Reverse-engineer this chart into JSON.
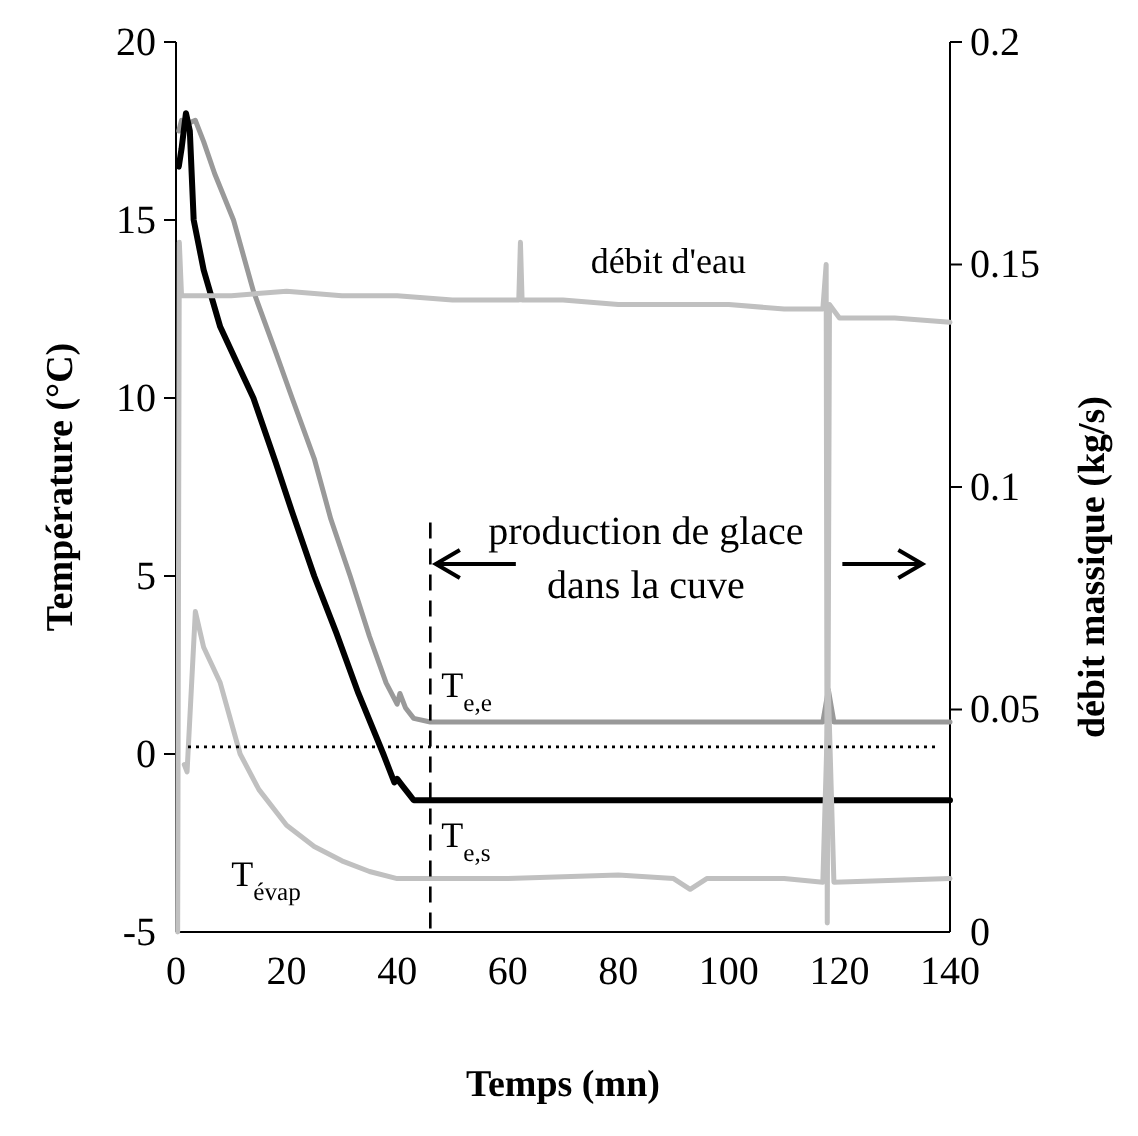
{
  "chart_data": {
    "type": "line",
    "xlabel": "Temps (mn)",
    "ylabel": "Température (°C)",
    "y2label": "débit massique (kg/s)",
    "xlim": [
      0,
      140
    ],
    "xticks": [
      0,
      20,
      40,
      60,
      80,
      100,
      120,
      140
    ],
    "ylim": [
      -5,
      20
    ],
    "yticks": [
      -5,
      0,
      5,
      10,
      15,
      20
    ],
    "y2lim": [
      0,
      0.2
    ],
    "y2ticks": [
      0,
      0.05,
      0.1,
      0.15,
      0.2
    ],
    "legend": false,
    "grid": false,
    "ref_lines": [
      {
        "axis": "y",
        "value": 0.2,
        "line_style": "dotted",
        "color": "#000000"
      },
      {
        "axis": "x",
        "value": 46,
        "line_style": "dashed",
        "color": "#000000"
      }
    ],
    "annotations": [
      "production de glace dans la cuve"
    ],
    "series": [
      {
        "name": "T$_{e,e}$",
        "color": "#999999",
        "x": [
          0.5,
          1,
          2,
          3.5,
          5,
          7,
          10.4,
          14,
          18,
          21,
          25,
          28,
          31.5,
          35,
          38,
          40,
          40.5,
          41.5,
          43,
          46,
          60,
          80,
          100,
          117,
          118,
          119,
          140
        ],
        "values": [
          17.5,
          17.8,
          17.7,
          17.8,
          17.2,
          16.3,
          15,
          13,
          11.3,
          10,
          8.3,
          6.6,
          5,
          3.3,
          2,
          1.4,
          1.7,
          1.3,
          1,
          0.9,
          0.9,
          0.9,
          0.9,
          0.9,
          1.8,
          0.9,
          0.9
        ]
      },
      {
        "name": "T$_{e,s}$",
        "color": "#000000",
        "x": [
          0.5,
          1,
          1.8,
          2.5,
          3.2,
          5,
          8,
          11,
          14,
          18,
          21,
          25,
          29,
          33,
          37.5,
          39.5,
          40,
          41,
          42,
          43,
          46,
          60,
          80,
          100,
          117,
          118,
          119,
          140
        ],
        "values": [
          16.5,
          17,
          18,
          17.5,
          15,
          13.6,
          12,
          11,
          10,
          8.2,
          6.8,
          5,
          3.4,
          1.7,
          0,
          -0.8,
          -0.7,
          -0.9,
          -1.1,
          -1.3,
          -1.3,
          -1.3,
          -1.3,
          -1.3,
          -1.3,
          -1.3,
          -1.3,
          -1.3
        ]
      },
      {
        "name": "T$_{évap}$",
        "color": "#c0c0c0",
        "x": [
          1.5,
          2,
          3.5,
          5,
          8,
          11.6,
          15,
          20,
          25,
          30,
          35,
          40,
          46,
          60,
          80,
          90,
          93,
          96,
          110,
          117,
          118,
          119,
          140
        ],
        "values": [
          -0.3,
          -0.5,
          4,
          3,
          2,
          0,
          -1,
          -2,
          -2.6,
          -3,
          -3.3,
          -3.5,
          -3.5,
          -3.5,
          -3.4,
          -3.5,
          -3.8,
          -3.5,
          -3.5,
          -3.6,
          1.8,
          -3.6,
          -3.5
        ]
      },
      {
        "name": "débit d'eau",
        "color": "#c0c0c0",
        "axis": "y2",
        "x": [
          0.3,
          0.6,
          1,
          2,
          10,
          20,
          30,
          40,
          50,
          62,
          62.3,
          62.6,
          70,
          80,
          90,
          100,
          110,
          117,
          117.6,
          117.8,
          118.2,
          120,
          130,
          140
        ],
        "values": [
          0,
          0.155,
          0.143,
          0.143,
          0.143,
          0.144,
          0.143,
          0.143,
          0.142,
          0.142,
          0.155,
          0.142,
          0.142,
          0.141,
          0.141,
          0.141,
          0.14,
          0.14,
          0.15,
          0.002,
          0.141,
          0.138,
          0.138,
          0.137
        ]
      }
    ]
  }
}
